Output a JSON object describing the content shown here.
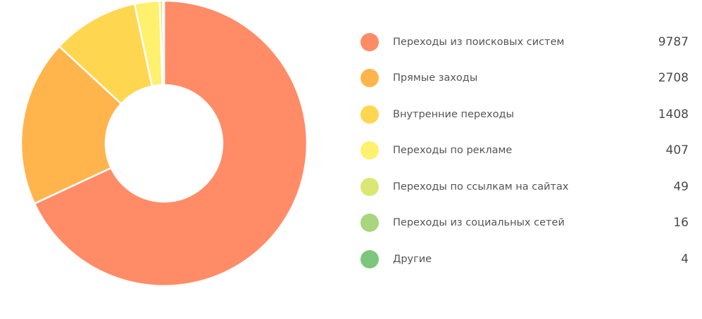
{
  "chart_data": {
    "type": "pie",
    "donut": true,
    "legend_position": "right",
    "categories": [
      "Переходы из поисковых систем",
      "Прямые заходы",
      "Внутренние переходы",
      "Переходы по рекламе",
      "Переходы по ссылкам на сайтах",
      "Переходы из социальных сетей",
      "Другие"
    ],
    "values": [
      9787,
      2708,
      1408,
      407,
      49,
      16,
      4
    ],
    "colors": [
      "#ff8c66",
      "#ffb54c",
      "#ffd64f",
      "#fff06e",
      "#dce773",
      "#a8d57e",
      "#7cc77c"
    ]
  }
}
